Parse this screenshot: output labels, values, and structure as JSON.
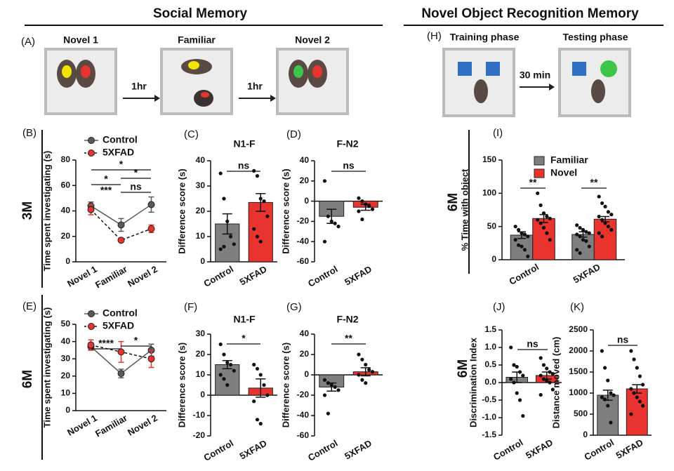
{
  "headings": [
    "Social Memory",
    "Novel Object Recognition Memory"
  ],
  "social_diagram": {
    "panel": "(A)",
    "labels": [
      "Novel 1",
      "Familiar",
      "Novel 2"
    ],
    "arrows": [
      "1hr",
      "1hr"
    ]
  },
  "nor_diagram": {
    "panel": "(H)",
    "labels": [
      "Training phase",
      "Testing phase"
    ],
    "arrows": [
      "30 min"
    ]
  },
  "chart_data": [
    {
      "type": "line",
      "panel": "(B)",
      "row_label": "3M",
      "ylabel": "Time spent investigating (s)",
      "categories": [
        "Novel 1",
        "Familiar",
        "Novel 2"
      ],
      "ylim": [
        0,
        80
      ],
      "yticks": [
        0,
        20,
        40,
        60,
        80
      ],
      "series": [
        {
          "name": "Control",
          "color": "#595959",
          "values": [
            44,
            29,
            45
          ],
          "errors": [
            3,
            5,
            6
          ]
        },
        {
          "name": "5XFAD",
          "color": "#e8332f",
          "values": [
            41,
            17,
            26
          ],
          "errors": [
            4,
            1,
            3
          ],
          "dashed": true
        }
      ],
      "annotations": [
        {
          "text": "*",
          "color": "#e8332f"
        },
        {
          "text": "*",
          "color": "#e8332f"
        },
        {
          "text": "*",
          "color": "#000000"
        },
        {
          "text": "***",
          "color": "#e8332f"
        },
        {
          "text": "ns",
          "color": "#000000"
        }
      ]
    },
    {
      "type": "bar",
      "panel": "(C)",
      "title": "N1-F",
      "ylabel": "Difference score (s)",
      "categories": [
        "Control",
        "5XFAD"
      ],
      "values": [
        15,
        23.5
      ],
      "errors": [
        4,
        3.5
      ],
      "colors": [
        "#7f7f7f",
        "#e8332f"
      ],
      "points": [
        [
          35,
          25,
          16,
          10,
          7,
          5,
          6
        ],
        [
          36,
          34,
          25,
          24,
          18,
          13,
          10,
          8
        ]
      ],
      "ylim": [
        0,
        40
      ],
      "yticks": [
        0,
        10,
        20,
        30,
        40
      ],
      "annotations": [
        {
          "text": "ns",
          "color": "#000000"
        }
      ]
    },
    {
      "type": "bar",
      "panel": "(D)",
      "title": "F-N2",
      "ylabel": "Difference score (s)",
      "categories": [
        "Control",
        "5XFAD"
      ],
      "values": [
        -15,
        -6
      ],
      "errors": [
        7,
        3
      ],
      "colors": [
        "#7f7f7f",
        "#e8332f"
      ],
      "points": [
        [
          20,
          -15,
          -20,
          -22,
          -25,
          -40
        ],
        [
          3,
          0,
          -3,
          -5,
          -8,
          -10,
          -18
        ]
      ],
      "ylim": [
        -60,
        40
      ],
      "yticks": [
        -60,
        -40,
        -20,
        0,
        20,
        40
      ],
      "annotations": [
        {
          "text": "ns",
          "color": "#000000"
        }
      ]
    },
    {
      "type": "bar",
      "panel": "(I)",
      "row_label": "6M",
      "ylabel": "% Time with object",
      "categories": [
        "Control",
        "5XFAD"
      ],
      "ylim": [
        0,
        150
      ],
      "yticks": [
        0,
        50,
        100,
        150
      ],
      "series": [
        {
          "name": "Familiar",
          "color": "#7f7f7f",
          "values": [
            37,
            38
          ],
          "errors": [
            5,
            4
          ],
          "points": [
            [
              50,
              45,
              40,
              38,
              35,
              30,
              22,
              20,
              15,
              5
            ],
            [
              52,
              48,
              45,
              42,
              40,
              38,
              35,
              30,
              28,
              20,
              15,
              10
            ]
          ]
        },
        {
          "name": "Novel",
          "color": "#e8332f",
          "values": [
            62,
            61
          ],
          "errors": [
            6,
            4
          ],
          "points": [
            [
              100,
              82,
              70,
              65,
              62,
              60,
              55,
              48,
              40,
              30
            ],
            [
              95,
              85,
              80,
              72,
              68,
              65,
              60,
              55,
              50,
              45,
              40,
              35
            ]
          ]
        }
      ],
      "annotations": [
        {
          "text": "**",
          "color": "#000000"
        },
        {
          "text": "**",
          "color": "#000000"
        }
      ]
    },
    {
      "type": "line",
      "panel": "(E)",
      "row_label": "6M",
      "ylabel": "Time spent investigating (s)",
      "categories": [
        "Novel 1",
        "Familiar",
        "Novel 2"
      ],
      "ylim": [
        0,
        50
      ],
      "yticks": [
        0,
        10,
        20,
        30,
        40,
        50
      ],
      "series": [
        {
          "name": "Control",
          "color": "#595959",
          "values": [
            37,
            21.5,
            35
          ],
          "errors": [
            2,
            2.5,
            3.5
          ]
        },
        {
          "name": "5XFAD",
          "color": "#e8332f",
          "values": [
            38,
            34,
            30
          ],
          "errors": [
            3,
            6,
            5
          ],
          "dashed": true
        }
      ],
      "annotations": [
        {
          "text": "****",
          "color": "#000000"
        },
        {
          "text": "*",
          "color": "#000000"
        }
      ]
    },
    {
      "type": "bar",
      "panel": "(F)",
      "title": "N1-F",
      "ylabel": "Difference score (s)",
      "categories": [
        "Control",
        "5XFAD"
      ],
      "values": [
        15,
        3.5
      ],
      "errors": [
        2,
        4.5
      ],
      "colors": [
        "#7f7f7f",
        "#e8332f"
      ],
      "points": [
        [
          25,
          20,
          16,
          15,
          12,
          10,
          8,
          5
        ],
        [
          15,
          13,
          10,
          5,
          0,
          -3,
          -12,
          -14
        ]
      ],
      "ylim": [
        -20,
        30
      ],
      "yticks": [
        -20,
        -10,
        0,
        10,
        20,
        30
      ],
      "annotations": [
        {
          "text": "*",
          "color": "#000000"
        }
      ]
    },
    {
      "type": "bar",
      "panel": "(G)",
      "title": "F-N2",
      "ylabel": "Difference score (s)",
      "categories": [
        "Control",
        "5XFAD"
      ],
      "values": [
        -12,
        3
      ],
      "errors": [
        4,
        4
      ],
      "colors": [
        "#7f7f7f",
        "#e8332f"
      ],
      "points": [
        [
          -5,
          -8,
          -10,
          -12,
          -15,
          -20,
          -38
        ],
        [
          20,
          15,
          10,
          5,
          3,
          0,
          -5,
          -8
        ]
      ],
      "ylim": [
        -60,
        40
      ],
      "yticks": [
        -60,
        -40,
        -20,
        0,
        20,
        40
      ],
      "annotations": [
        {
          "text": "**",
          "color": "#000000"
        }
      ]
    },
    {
      "type": "bar",
      "panel": "(J)",
      "row_label": "6M",
      "ylabel": "Discrimination Index",
      "categories": [
        "Control",
        "5XFAD"
      ],
      "values": [
        0.15,
        0.2
      ],
      "errors": [
        0.15,
        0.1
      ],
      "colors": [
        "#7f7f7f",
        "#e8332f"
      ],
      "points": [
        [
          1.0,
          0.5,
          0.45,
          0.3,
          0.2,
          0.1,
          0,
          -0.3,
          -0.5,
          -0.95
        ],
        [
          0.7,
          0.5,
          0.4,
          0.3,
          0.25,
          0.2,
          0.1,
          0.05,
          0,
          -0.2,
          -0.35
        ]
      ],
      "ylim": [
        -1.5,
        1.5
      ],
      "yticks": [
        -1.5,
        {
          "value": -1,
          "label": "-1.0"
        },
        -0.5,
        {
          "value": 0,
          "label": "0.0"
        },
        0.5,
        {
          "value": 1,
          "label": "1.0"
        },
        1.5
      ],
      "annotations": [
        {
          "text": "ns",
          "color": "#000000"
        }
      ]
    },
    {
      "type": "bar",
      "panel": "(K)",
      "ylabel": "Distance moved (cm)",
      "categories": [
        "Control",
        "5XFAD"
      ],
      "values": [
        950,
        1100
      ],
      "errors": [
        120,
        100
      ],
      "colors": [
        "#7f7f7f",
        "#e8332f"
      ],
      "points": [
        [
          2000,
          1600,
          1300,
          1000,
          950,
          900,
          850,
          700,
          300
        ],
        [
          2000,
          1800,
          1600,
          1400,
          1200,
          1100,
          1000,
          900,
          800,
          700,
          500
        ]
      ],
      "ylim": [
        0,
        2500
      ],
      "yticks": [
        0,
        500,
        1000,
        1500,
        2000,
        2500
      ],
      "annotations": [
        {
          "text": "ns",
          "color": "#000000"
        }
      ]
    }
  ]
}
